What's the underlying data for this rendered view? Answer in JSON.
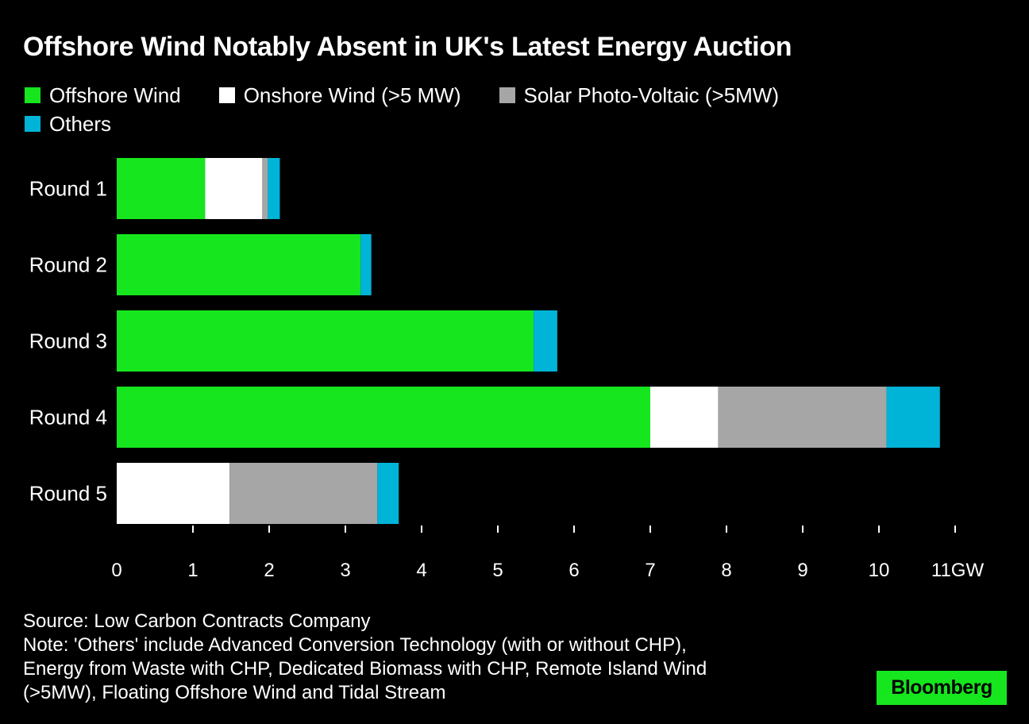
{
  "title": "Offshore Wind Notably Absent in UK's Latest Energy Auction",
  "legend": [
    {
      "label": "Offshore Wind",
      "color": "#16e61e"
    },
    {
      "label": "Onshore Wind (>5 MW)",
      "color": "#ffffff"
    },
    {
      "label": "Solar Photo-Voltaic (>5MW)",
      "color": "#a6a6a6"
    },
    {
      "label": "Others",
      "color": "#00b4d8"
    }
  ],
  "chart_data": {
    "type": "bar",
    "orientation": "horizontal",
    "stacked": true,
    "categories": [
      "Round 1",
      "Round 2",
      "Round 3",
      "Round 4",
      "Round 5"
    ],
    "series": [
      {
        "name": "Offshore Wind",
        "color": "#16e61e",
        "values": [
          1.16,
          3.2,
          5.47,
          7.0,
          0
        ]
      },
      {
        "name": "Onshore Wind (>5 MW)",
        "color": "#ffffff",
        "values": [
          0.75,
          0,
          0,
          0.89,
          1.48
        ]
      },
      {
        "name": "Solar Photo-Voltaic (>5MW)",
        "color": "#a6a6a6",
        "values": [
          0.07,
          0,
          0,
          2.21,
          1.94
        ]
      },
      {
        "name": "Others",
        "color": "#00b4d8",
        "values": [
          0.16,
          0.14,
          0.31,
          0.7,
          0.28
        ]
      }
    ],
    "xlim": [
      0,
      11
    ],
    "x_ticks": [
      0,
      1,
      2,
      3,
      4,
      5,
      6,
      7,
      8,
      9,
      10,
      11
    ],
    "x_tick_labels": [
      "0",
      "1",
      "2",
      "3",
      "4",
      "5",
      "6",
      "7",
      "8",
      "9",
      "10",
      "11GW"
    ],
    "grid": false,
    "legend_position": "top-left"
  },
  "source": {
    "lines": [
      "Source: Low Carbon Contracts Company",
      "Note: 'Others' include Advanced Conversion Technology (with or without CHP),",
      "Energy from Waste with CHP, Dedicated Biomass with CHP, Remote Island Wind",
      "(>5MW), Floating Offshore Wind and Tidal Stream"
    ]
  },
  "brand": "Bloomberg"
}
